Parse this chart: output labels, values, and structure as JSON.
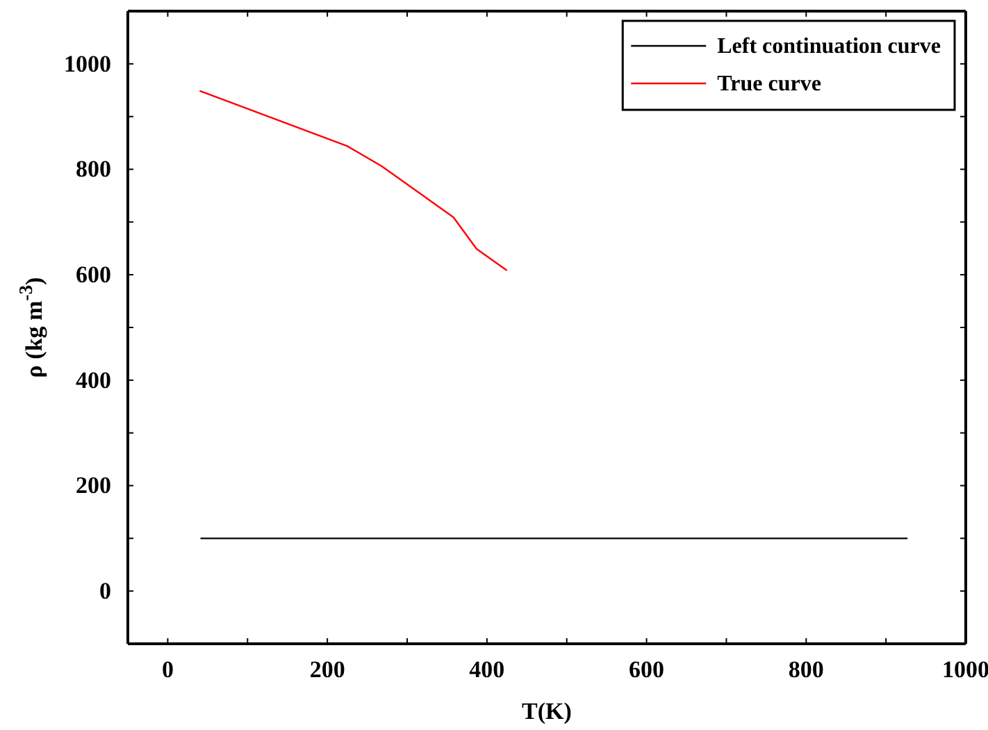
{
  "chart_data": {
    "type": "line",
    "xlabel": "T(K)",
    "ylabel": "ρ (kg m$^{-3}$)",
    "xlim": [
      -50,
      1000
    ],
    "ylim": [
      -100,
      1100
    ],
    "xticks": [
      0,
      {
        "value": 100,
        "label": null
      },
      200,
      {
        "value": 300,
        "label": null
      },
      400,
      {
        "value": 500,
        "label": null
      },
      600,
      {
        "value": 700,
        "label": null
      },
      800,
      {
        "value": 900,
        "label": null
      },
      1000
    ],
    "yticks": [
      0,
      {
        "value": 100,
        "label": null
      },
      200,
      {
        "value": 300,
        "label": null
      },
      400,
      {
        "value": 500,
        "label": null
      },
      600,
      {
        "value": 700,
        "label": null
      },
      800,
      {
        "value": 900,
        "label": null
      },
      1000
    ],
    "legend": "top right",
    "grid": false,
    "marker": "none",
    "line_style": "solid",
    "series": [
      {
        "name": "Left continuation curve",
        "color": "#000000",
        "x": [
          41,
          927
        ],
        "values": [
          100,
          100
        ]
      },
      {
        "name": "True curve",
        "color": "#ff0000",
        "x": [
          40,
          225,
          268,
          358,
          387,
          425
        ],
        "values": [
          949,
          844,
          806,
          709,
          649,
          608
        ]
      }
    ]
  }
}
